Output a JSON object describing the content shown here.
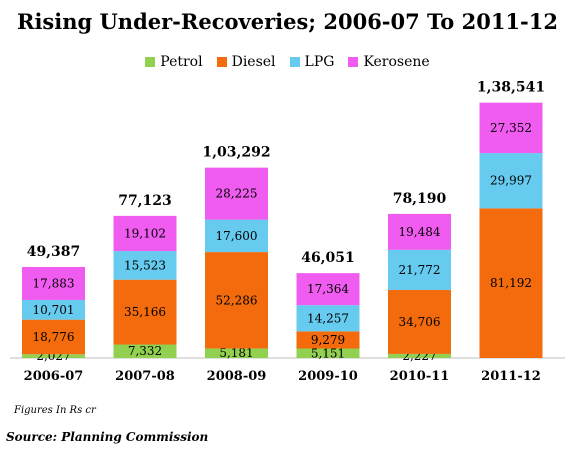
{
  "chart_data": {
    "type": "bar",
    "stacked": true,
    "title": "Rising Under-Recoveries; 2006-07 To 2011-12",
    "categories": [
      "2006-07",
      "2007-08",
      "2008-09",
      "2009-10",
      "2010-11",
      "2011-12"
    ],
    "series": [
      {
        "name": "Petrol",
        "color": "#92d050",
        "values": [
          2027,
          7332,
          5181,
          5151,
          2227,
          null
        ],
        "labels": [
          "2,027",
          "7,332",
          "5,181",
          "5,151",
          "2,227",
          ""
        ]
      },
      {
        "name": "Diesel",
        "color": "#f36b0c",
        "values": [
          18776,
          35166,
          52286,
          9279,
          34706,
          81192
        ],
        "labels": [
          "18,776",
          "35,166",
          "52,286",
          "9,279",
          "34,706",
          "81,192"
        ]
      },
      {
        "name": "LPG",
        "color": "#66cbef",
        "values": [
          10701,
          15523,
          17600,
          14257,
          21772,
          29997
        ],
        "labels": [
          "10,701",
          "15,523",
          "17,600",
          "14,257",
          "21,772",
          "29,997"
        ]
      },
      {
        "name": "Kerosene",
        "color": "#f05cf0",
        "values": [
          17883,
          19102,
          28225,
          17364,
          19484,
          27352
        ],
        "labels": [
          "17,883",
          "19,102",
          "28,225",
          "17,364",
          "19,484",
          "27,352"
        ]
      }
    ],
    "totals": [
      49387,
      77123,
      103292,
      46051,
      78190,
      138541
    ],
    "total_labels": [
      "49,387",
      "77,123",
      "1,03,292",
      "46,051",
      "78,190",
      "1,38,541"
    ],
    "legend_position": "top",
    "grid": false
  },
  "footnote": "Figures In Rs cr",
  "source": "Source: Planning Commission"
}
